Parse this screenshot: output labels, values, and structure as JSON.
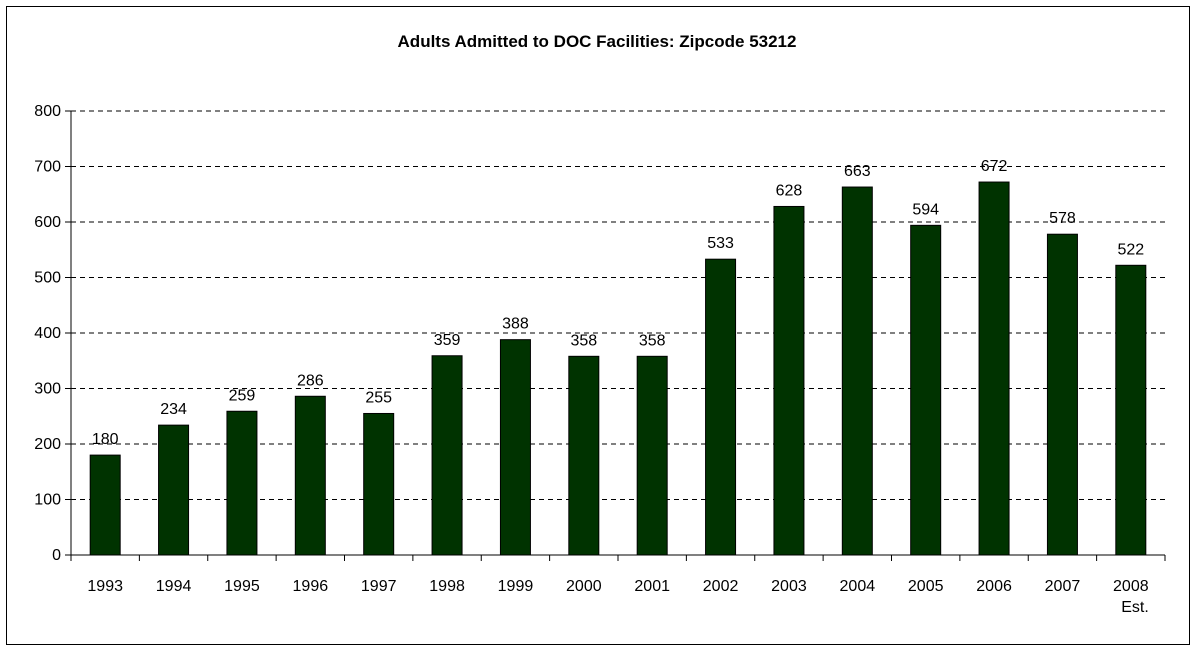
{
  "chart_data": {
    "type": "bar",
    "title": "Adults Admitted to DOC Facilities: Zipcode 53212",
    "xlabel": "",
    "ylabel": "",
    "categories": [
      [
        "1993"
      ],
      [
        "1994"
      ],
      [
        "1995"
      ],
      [
        "1996"
      ],
      [
        "1997"
      ],
      [
        "1998"
      ],
      [
        "1999"
      ],
      [
        "2000"
      ],
      [
        "2001"
      ],
      [
        "2002"
      ],
      [
        "2003"
      ],
      [
        "2004"
      ],
      [
        "2005"
      ],
      [
        "2006"
      ],
      [
        "2007"
      ],
      [
        "2008",
        "Est."
      ]
    ],
    "values": [
      180,
      234,
      259,
      286,
      255,
      359,
      388,
      358,
      358,
      533,
      628,
      663,
      594,
      672,
      578,
      522
    ],
    "ylim": [
      0,
      800
    ],
    "yticks": [
      0,
      100,
      200,
      300,
      400,
      500,
      600,
      700,
      800
    ],
    "grid": "horizontal dashed",
    "data_labels": true,
    "legend": "none",
    "colors": {
      "bar": "#003300",
      "bar_border": "#000000",
      "grid": "#000000"
    }
  }
}
